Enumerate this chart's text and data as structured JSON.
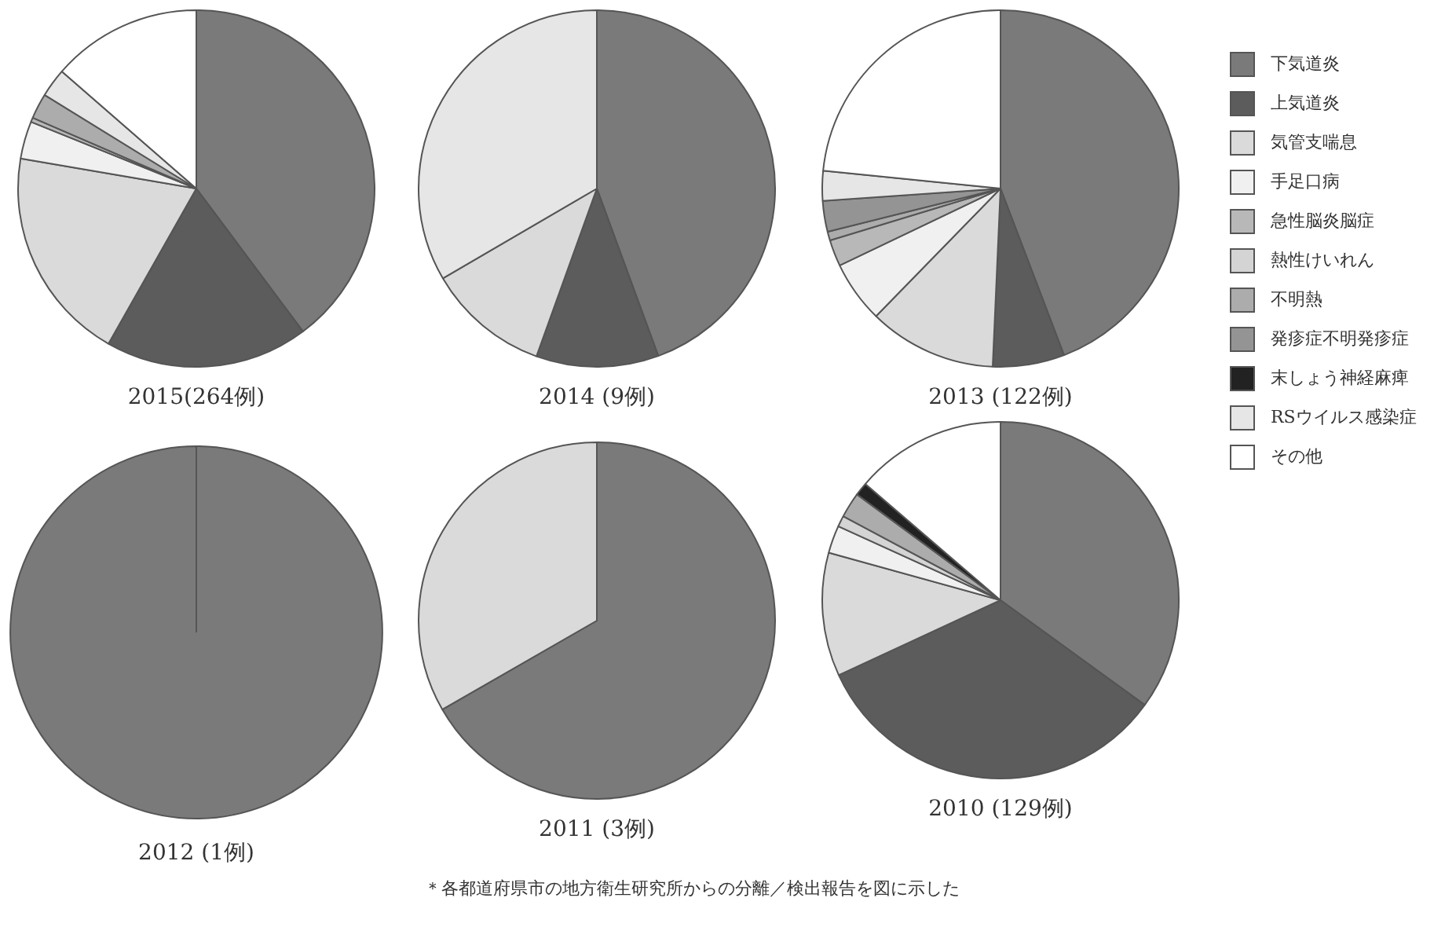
{
  "chart_data": [
    {
      "type": "pie",
      "title": "2015(264例)",
      "categories": [
        "下気道炎",
        "上気道炎",
        "気管支喘息",
        "手足口病",
        "急性脳炎脳症",
        "熱性けいれん",
        "不明熱",
        "発疹症不明発疹症",
        "末しょう神経麻痺",
        "RSウイルス感染症",
        "その他"
      ],
      "values": [
        39.8,
        18.4,
        19.5,
        3.4,
        0.4,
        0,
        2.3,
        0,
        0,
        2.6,
        13.6
      ],
      "colors": [
        "#7a7a7a",
        "#5c5c5c",
        "#dadada",
        "#f0f0f0",
        "#b8b8b8",
        "#d4d4d4",
        "#acacac",
        "#949494",
        "#222222",
        "#e6e6e6",
        "#ffffff"
      ],
      "legend": "right"
    },
    {
      "type": "pie",
      "title": "2014 (9例)",
      "categories": [
        null,
        null,
        null,
        null,
        null,
        null,
        null,
        null,
        null,
        null,
        null
      ],
      "values": [
        44.4,
        11.1,
        11.1,
        0,
        0,
        0,
        0,
        0,
        0,
        33.4,
        0
      ],
      "colors": [
        "#7a7a7a",
        "#5c5c5c",
        "#dadada",
        "#f0f0f0",
        "#b8b8b8",
        "#d4d4d4",
        "#acacac",
        "#949494",
        "#222222",
        "#e6e6e6",
        "#ffffff"
      ]
    },
    {
      "type": "pie",
      "title": "2013 (122例)",
      "categories": [
        null,
        null,
        null,
        null,
        null,
        null,
        null,
        null,
        null,
        null,
        null
      ],
      "values": [
        44.2,
        6.5,
        11.6,
        5.6,
        2.4,
        0,
        0.8,
        2.8,
        0,
        2.7,
        23.4
      ],
      "colors": [
        "#7a7a7a",
        "#5c5c5c",
        "#dadada",
        "#f0f0f0",
        "#b8b8b8",
        "#d4d4d4",
        "#acacac",
        "#949494",
        "#222222",
        "#e6e6e6",
        "#ffffff"
      ]
    },
    {
      "type": "pie",
      "title": "2012 (1例)",
      "categories": [
        null,
        null,
        null,
        null,
        null,
        null,
        null,
        null,
        null,
        null,
        null
      ],
      "values": [
        100,
        0,
        0,
        0,
        0,
        0,
        0,
        0,
        0,
        0,
        0
      ],
      "colors": [
        "#7a7a7a",
        "#5c5c5c",
        "#dadada",
        "#f0f0f0",
        "#b8b8b8",
        "#d4d4d4",
        "#acacac",
        "#949494",
        "#222222",
        "#e6e6e6",
        "#ffffff"
      ]
    },
    {
      "type": "pie",
      "title": "2011 (3例)",
      "categories": [
        null,
        null,
        null,
        null,
        null,
        null,
        null,
        null,
        null,
        null,
        null
      ],
      "values": [
        66.7,
        0,
        33.3,
        0,
        0,
        0,
        0,
        0,
        0,
        0,
        0
      ],
      "colors": [
        "#7a7a7a",
        "#5c5c5c",
        "#dadada",
        "#f0f0f0",
        "#b8b8b8",
        "#d4d4d4",
        "#acacac",
        "#949494",
        "#222222",
        "#e6e6e6",
        "#ffffff"
      ]
    },
    {
      "type": "pie",
      "title": "2010 (129例)",
      "categories": [
        null,
        null,
        null,
        null,
        null,
        null,
        null,
        null,
        null,
        null,
        null
      ],
      "values": [
        35.0,
        33.1,
        11.2,
        2.5,
        0,
        1.0,
        2.3,
        0,
        1.2,
        0,
        13.7
      ],
      "colors": [
        "#7a7a7a",
        "#5c5c5c",
        "#dadada",
        "#f0f0f0",
        "#b8b8b8",
        "#d4d4d4",
        "#acacac",
        "#949494",
        "#222222",
        "#e6e6e6",
        "#ffffff"
      ],
      "annotations": [
        "＊各都道府県市の地方衛生研究所からの分離／検出報告を図に示した"
      ]
    }
  ]
}
